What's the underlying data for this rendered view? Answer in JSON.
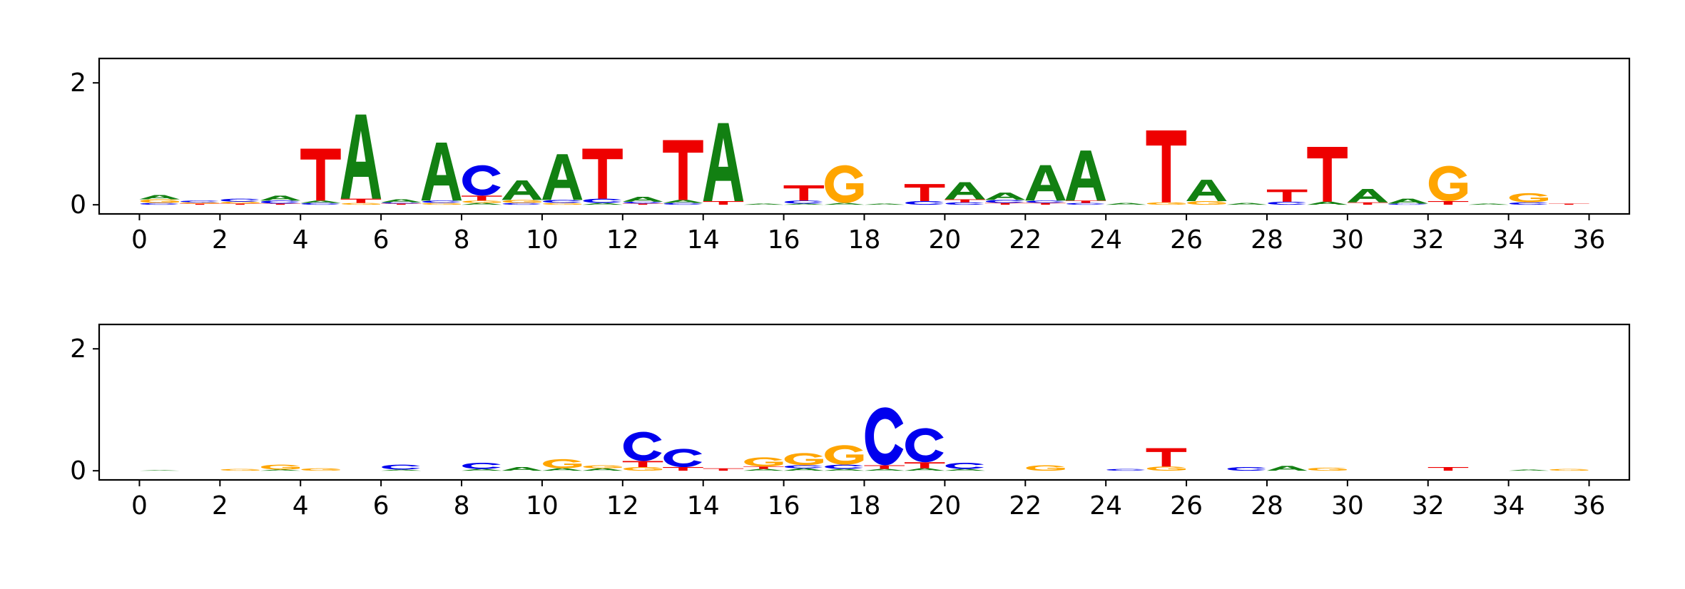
{
  "colors": {
    "A": "#128012",
    "C": "#0000ee",
    "G": "#ffa500",
    "T": "#ee0000",
    "axis": "#000000",
    "background": "#ffffff"
  },
  "chart_data": [
    {
      "type": "sequence-logo",
      "title": "",
      "xlabel": "",
      "ylabel": "",
      "xlim": [
        -1,
        37
      ],
      "ylim": [
        -0.15,
        2.4
      ],
      "xticks": [
        "0",
        "2",
        "4",
        "6",
        "8",
        "10",
        "12",
        "14",
        "16",
        "18",
        "20",
        "22",
        "24",
        "26",
        "28",
        "30",
        "32",
        "34",
        "36"
      ],
      "yticks": [
        "0",
        "2"
      ],
      "positions": [
        {
          "pos": 0,
          "letters": [
            {
              "l": "C",
              "v": 0.03
            },
            {
              "l": "G",
              "v": 0.06
            },
            {
              "l": "A",
              "v": 0.07
            }
          ]
        },
        {
          "pos": 1,
          "letters": [
            {
              "l": "T",
              "v": 0.02
            },
            {
              "l": "G",
              "v": 0.02
            },
            {
              "l": "C",
              "v": 0.03
            }
          ]
        },
        {
          "pos": 2,
          "letters": [
            {
              "l": "T",
              "v": 0.02
            },
            {
              "l": "G",
              "v": 0.03
            },
            {
              "l": "C",
              "v": 0.05
            }
          ]
        },
        {
          "pos": 3,
          "letters": [
            {
              "l": "T",
              "v": 0.02
            },
            {
              "l": "C",
              "v": 0.05
            },
            {
              "l": "A",
              "v": 0.08
            }
          ]
        },
        {
          "pos": 4,
          "letters": [
            {
              "l": "C",
              "v": 0.03
            },
            {
              "l": "A",
              "v": 0.04
            },
            {
              "l": "T",
              "v": 0.85
            }
          ]
        },
        {
          "pos": 5,
          "letters": [
            {
              "l": "G",
              "v": 0.03
            },
            {
              "l": "T",
              "v": 0.07
            },
            {
              "l": "A",
              "v": 1.38
            }
          ]
        },
        {
          "pos": 6,
          "letters": [
            {
              "l": "T",
              "v": 0.02
            },
            {
              "l": "C",
              "v": 0.02
            },
            {
              "l": "A",
              "v": 0.05
            }
          ]
        },
        {
          "pos": 7,
          "letters": [
            {
              "l": "G",
              "v": 0.03
            },
            {
              "l": "C",
              "v": 0.04
            },
            {
              "l": "A",
              "v": 0.95
            }
          ]
        },
        {
          "pos": 8,
          "letters": [
            {
              "l": "A",
              "v": 0.03
            },
            {
              "l": "G",
              "v": 0.04
            },
            {
              "l": "T",
              "v": 0.08
            },
            {
              "l": "C",
              "v": 0.5
            }
          ]
        },
        {
          "pos": 9,
          "letters": [
            {
              "l": "C",
              "v": 0.03
            },
            {
              "l": "G",
              "v": 0.05
            },
            {
              "l": "A",
              "v": 0.32
            }
          ]
        },
        {
          "pos": 10,
          "letters": [
            {
              "l": "G",
              "v": 0.03
            },
            {
              "l": "C",
              "v": 0.05
            },
            {
              "l": "A",
              "v": 0.75
            }
          ]
        },
        {
          "pos": 11,
          "letters": [
            {
              "l": "A",
              "v": 0.03
            },
            {
              "l": "C",
              "v": 0.07
            },
            {
              "l": "T",
              "v": 0.82
            }
          ]
        },
        {
          "pos": 12,
          "letters": [
            {
              "l": "T",
              "v": 0.02
            },
            {
              "l": "C",
              "v": 0.03
            },
            {
              "l": "A",
              "v": 0.08
            }
          ]
        },
        {
          "pos": 13,
          "letters": [
            {
              "l": "C",
              "v": 0.03
            },
            {
              "l": "A",
              "v": 0.05
            },
            {
              "l": "T",
              "v": 0.98
            }
          ]
        },
        {
          "pos": 14,
          "letters": [
            {
              "l": "T",
              "v": 0.06
            },
            {
              "l": "A",
              "v": 1.28
            }
          ]
        },
        {
          "pos": 15,
          "letters": [
            {
              "l": "A",
              "v": 0.02
            }
          ]
        },
        {
          "pos": 16,
          "letters": [
            {
              "l": "A",
              "v": 0.02
            },
            {
              "l": "C",
              "v": 0.05
            },
            {
              "l": "T",
              "v": 0.25
            }
          ]
        },
        {
          "pos": 17,
          "letters": [
            {
              "l": "A",
              "v": 0.03
            },
            {
              "l": "G",
              "v": 0.62
            }
          ]
        },
        {
          "pos": 18,
          "letters": [
            {
              "l": "A",
              "v": 0.02
            }
          ]
        },
        {
          "pos": 19,
          "letters": [
            {
              "l": "C",
              "v": 0.06
            },
            {
              "l": "T",
              "v": 0.28
            }
          ]
        },
        {
          "pos": 20,
          "letters": [
            {
              "l": "C",
              "v": 0.04
            },
            {
              "l": "T",
              "v": 0.05
            },
            {
              "l": "A",
              "v": 0.28
            }
          ]
        },
        {
          "pos": 21,
          "letters": [
            {
              "l": "T",
              "v": 0.03
            },
            {
              "l": "C",
              "v": 0.05
            },
            {
              "l": "A",
              "v": 0.12
            }
          ]
        },
        {
          "pos": 22,
          "letters": [
            {
              "l": "T",
              "v": 0.03
            },
            {
              "l": "C",
              "v": 0.04
            },
            {
              "l": "A",
              "v": 0.58
            }
          ]
        },
        {
          "pos": 23,
          "letters": [
            {
              "l": "C",
              "v": 0.03
            },
            {
              "l": "T",
              "v": 0.04
            },
            {
              "l": "A",
              "v": 0.82
            }
          ]
        },
        {
          "pos": 24,
          "letters": [
            {
              "l": "A",
              "v": 0.03
            }
          ]
        },
        {
          "pos": 25,
          "letters": [
            {
              "l": "G",
              "v": 0.04
            },
            {
              "l": "T",
              "v": 1.18
            }
          ]
        },
        {
          "pos": 26,
          "letters": [
            {
              "l": "G",
              "v": 0.06
            },
            {
              "l": "A",
              "v": 0.35
            }
          ]
        },
        {
          "pos": 27,
          "letters": [
            {
              "l": "A",
              "v": 0.03
            }
          ]
        },
        {
          "pos": 28,
          "letters": [
            {
              "l": "C",
              "v": 0.05
            },
            {
              "l": "T",
              "v": 0.2
            }
          ]
        },
        {
          "pos": 29,
          "letters": [
            {
              "l": "A",
              "v": 0.05
            },
            {
              "l": "T",
              "v": 0.9
            }
          ]
        },
        {
          "pos": 30,
          "letters": [
            {
              "l": "T",
              "v": 0.04
            },
            {
              "l": "A",
              "v": 0.22
            }
          ]
        },
        {
          "pos": 31,
          "letters": [
            {
              "l": "C",
              "v": 0.02
            },
            {
              "l": "A",
              "v": 0.08
            }
          ]
        },
        {
          "pos": 32,
          "letters": [
            {
              "l": "T",
              "v": 0.06
            },
            {
              "l": "G",
              "v": 0.58
            }
          ]
        },
        {
          "pos": 33,
          "letters": [
            {
              "l": "A",
              "v": 0.02
            }
          ]
        },
        {
          "pos": 34,
          "letters": [
            {
              "l": "C",
              "v": 0.04
            },
            {
              "l": "G",
              "v": 0.15
            }
          ]
        },
        {
          "pos": 35,
          "letters": [
            {
              "l": "T",
              "v": 0.02
            }
          ]
        }
      ]
    },
    {
      "type": "sequence-logo",
      "title": "",
      "xlabel": "",
      "ylabel": "",
      "xlim": [
        -1,
        37
      ],
      "ylim": [
        -0.15,
        2.4
      ],
      "xticks": [
        "0",
        "2",
        "4",
        "6",
        "8",
        "10",
        "12",
        "14",
        "16",
        "18",
        "20",
        "22",
        "24",
        "26",
        "28",
        "30",
        "32",
        "34",
        "36"
      ],
      "yticks": [
        "0",
        "2"
      ],
      "positions": [
        {
          "pos": 0,
          "letters": [
            {
              "l": "A",
              "v": 0.01
            }
          ]
        },
        {
          "pos": 2,
          "letters": [
            {
              "l": "G",
              "v": 0.03
            }
          ]
        },
        {
          "pos": 3,
          "letters": [
            {
              "l": "A",
              "v": 0.02
            },
            {
              "l": "G",
              "v": 0.08
            }
          ]
        },
        {
          "pos": 4,
          "letters": [
            {
              "l": "G",
              "v": 0.04
            }
          ]
        },
        {
          "pos": 6,
          "letters": [
            {
              "l": "A",
              "v": 0.02
            },
            {
              "l": "C",
              "v": 0.08
            }
          ]
        },
        {
          "pos": 8,
          "letters": [
            {
              "l": "A",
              "v": 0.03
            },
            {
              "l": "C",
              "v": 0.1
            }
          ]
        },
        {
          "pos": 9,
          "letters": [
            {
              "l": "A",
              "v": 0.06
            }
          ]
        },
        {
          "pos": 10,
          "letters": [
            {
              "l": "A",
              "v": 0.04
            },
            {
              "l": "G",
              "v": 0.15
            }
          ]
        },
        {
          "pos": 11,
          "letters": [
            {
              "l": "A",
              "v": 0.04
            },
            {
              "l": "G",
              "v": 0.05
            }
          ]
        },
        {
          "pos": 12,
          "letters": [
            {
              "l": "G",
              "v": 0.06
            },
            {
              "l": "T",
              "v": 0.1
            },
            {
              "l": "C",
              "v": 0.48
            }
          ]
        },
        {
          "pos": 13,
          "letters": [
            {
              "l": "T",
              "v": 0.06
            },
            {
              "l": "C",
              "v": 0.3
            }
          ]
        },
        {
          "pos": 14,
          "letters": [
            {
              "l": "T",
              "v": 0.04
            }
          ]
        },
        {
          "pos": 15,
          "letters": [
            {
              "l": "A",
              "v": 0.03
            },
            {
              "l": "T",
              "v": 0.04
            },
            {
              "l": "G",
              "v": 0.15
            }
          ]
        },
        {
          "pos": 16,
          "letters": [
            {
              "l": "A",
              "v": 0.04
            },
            {
              "l": "C",
              "v": 0.05
            },
            {
              "l": "G",
              "v": 0.2
            }
          ]
        },
        {
          "pos": 17,
          "letters": [
            {
              "l": "A",
              "v": 0.03
            },
            {
              "l": "C",
              "v": 0.07
            },
            {
              "l": "G",
              "v": 0.32
            }
          ]
        },
        {
          "pos": 18,
          "letters": [
            {
              "l": "A",
              "v": 0.03
            },
            {
              "l": "T",
              "v": 0.06
            },
            {
              "l": "C",
              "v": 0.95
            }
          ]
        },
        {
          "pos": 19,
          "letters": [
            {
              "l": "A",
              "v": 0.04
            },
            {
              "l": "T",
              "v": 0.1
            },
            {
              "l": "C",
              "v": 0.56
            }
          ]
        },
        {
          "pos": 20,
          "letters": [
            {
              "l": "A",
              "v": 0.03
            },
            {
              "l": "C",
              "v": 0.1
            }
          ]
        },
        {
          "pos": 22,
          "letters": [
            {
              "l": "G",
              "v": 0.09
            }
          ]
        },
        {
          "pos": 24,
          "letters": [
            {
              "l": "C",
              "v": 0.03
            }
          ]
        },
        {
          "pos": 25,
          "letters": [
            {
              "l": "G",
              "v": 0.07
            },
            {
              "l": "T",
              "v": 0.3
            }
          ]
        },
        {
          "pos": 27,
          "letters": [
            {
              "l": "C",
              "v": 0.06
            }
          ]
        },
        {
          "pos": 28,
          "letters": [
            {
              "l": "A",
              "v": 0.08
            }
          ]
        },
        {
          "pos": 29,
          "letters": [
            {
              "l": "G",
              "v": 0.05
            }
          ]
        },
        {
          "pos": 32,
          "letters": [
            {
              "l": "T",
              "v": 0.06
            }
          ]
        },
        {
          "pos": 34,
          "letters": [
            {
              "l": "A",
              "v": 0.02
            }
          ]
        },
        {
          "pos": 35,
          "letters": [
            {
              "l": "G",
              "v": 0.03
            }
          ]
        }
      ]
    }
  ]
}
